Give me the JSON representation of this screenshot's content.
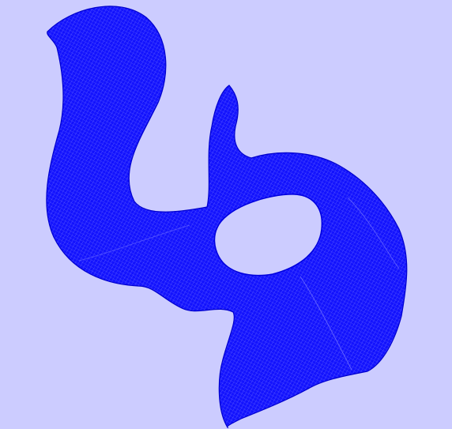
{
  "viewport": {
    "background_color": "#ccccff",
    "mesh_color": "#0000ff",
    "mesh_line_color": "#2b2bff"
  }
}
